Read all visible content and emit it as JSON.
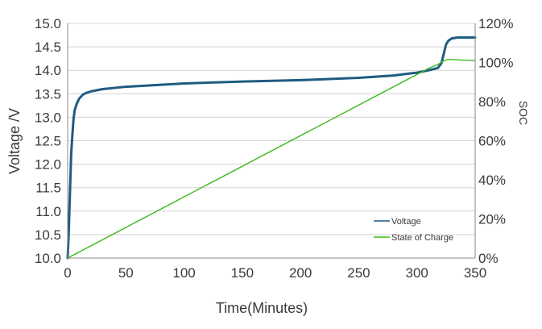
{
  "chart_data": {
    "type": "line",
    "title": "",
    "xlabel": "Time(Minutes)",
    "ylabel": "Voltage  /V",
    "y2label": "SOC",
    "xlim": [
      0,
      350
    ],
    "ylim": [
      10.0,
      15.0
    ],
    "y2lim": [
      0,
      120
    ],
    "x_ticks": [
      "0",
      "50",
      "100",
      "150",
      "200",
      "250",
      "300",
      "350"
    ],
    "y_ticks": [
      "10.0",
      "10.5",
      "11.0",
      "11.5",
      "12.0",
      "12.5",
      "13.0",
      "13.5",
      "14.0",
      "14.5",
      "15.0"
    ],
    "y2_ticks": [
      "0%",
      "20%",
      "40%",
      "60%",
      "80%",
      "100%",
      "120%"
    ],
    "grid": "horizontal",
    "legend_position": "bottom-right",
    "series": [
      {
        "name": "Voltage",
        "axis": "left",
        "color": "#1f5b82",
        "x": [
          0,
          1,
          2,
          3,
          4,
          5,
          6,
          8,
          10,
          13,
          16,
          20,
          30,
          50,
          100,
          150,
          200,
          250,
          280,
          300,
          310,
          318,
          321,
          323,
          325,
          327,
          330,
          335,
          340,
          350
        ],
        "y": [
          10.0,
          10.6,
          11.4,
          12.2,
          12.6,
          12.95,
          13.15,
          13.3,
          13.4,
          13.48,
          13.52,
          13.55,
          13.6,
          13.65,
          13.72,
          13.76,
          13.79,
          13.84,
          13.89,
          13.95,
          14.0,
          14.05,
          14.15,
          14.35,
          14.55,
          14.63,
          14.68,
          14.7,
          14.7,
          14.7
        ]
      },
      {
        "name": "State of Charge",
        "axis": "right",
        "color": "#3cb81e",
        "x": [
          0,
          310,
          318,
          322,
          326,
          330,
          340,
          350
        ],
        "y": [
          0,
          97,
          99,
          100.5,
          101.5,
          101.5,
          101.2,
          101
        ]
      }
    ]
  }
}
